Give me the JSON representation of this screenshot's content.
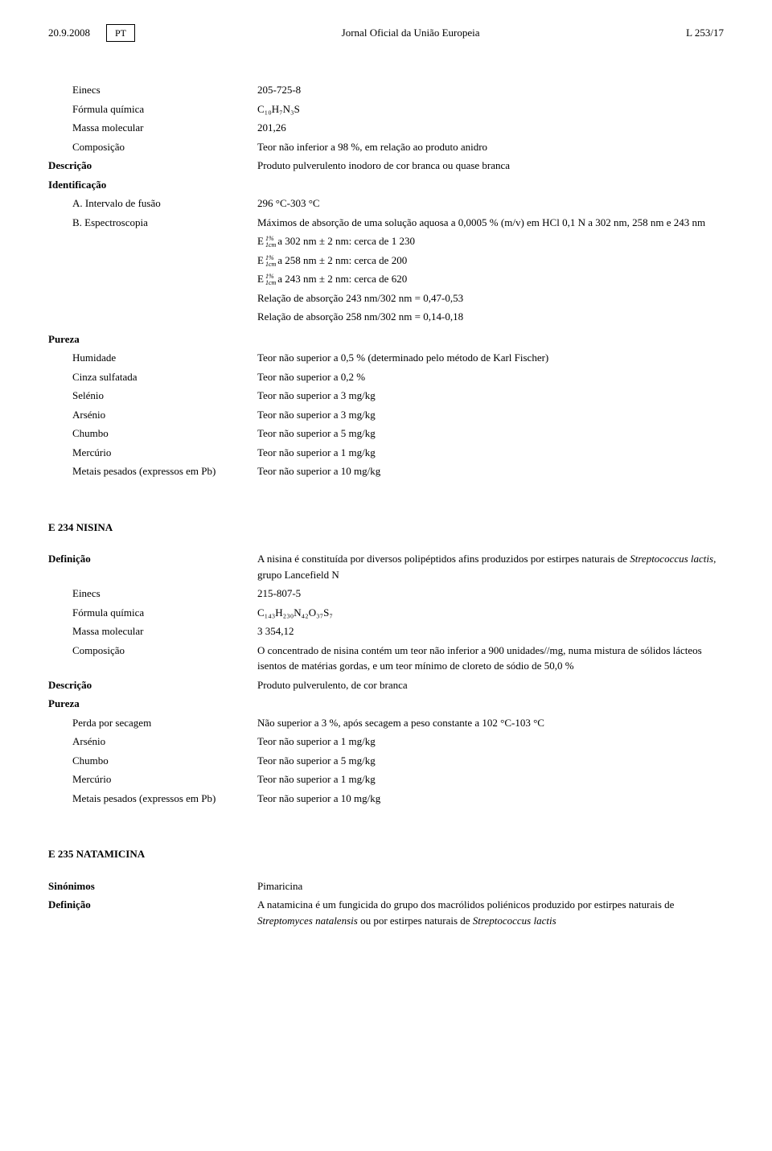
{
  "header": {
    "date": "20.9.2008",
    "lang": "PT",
    "journal": "Jornal Oficial da União Europeia",
    "page_ref": "L 253/17"
  },
  "section1": {
    "einecs_label": "Einecs",
    "einecs_value": "205-725-8",
    "formula_label": "Fórmula química",
    "formula_value": "C₁₀H₇N₃S",
    "massa_label": "Massa molecular",
    "massa_value": "201,26",
    "composicao_label": "Composição",
    "composicao_value": "Teor não inferior a 98 %, em relação ao produto anidro",
    "descricao_label": "Descrição",
    "descricao_value": "Produto pulverulento inodoro de cor branca ou quase branca",
    "identificacao_label": "Identificação",
    "intervalo_label": "A.  Intervalo de fusão",
    "intervalo_value": "296 °C-303 °C",
    "espectro_label": "B.  Espectroscopia",
    "espectro_line1": "Máximos de absorção de uma solução aquosa a 0,0005 % (m/v) em HCl 0,1 N a 302 nm, 258 nm e 243 nm",
    "espectro_e1": "a 302 nm ± 2 nm: cerca de 1 230",
    "espectro_e2": "a 258 nm ± 2 nm: cerca de 200",
    "espectro_e3": "a 243 nm ± 2 nm: cerca de 620",
    "espectro_rel1": "Relação de absorção 243 nm/302 nm = 0,47-0,53",
    "espectro_rel2": "Relação de absorção 258 nm/302 nm = 0,14-0,18",
    "pureza_label": "Pureza",
    "humidade_label": "Humidade",
    "humidade_value": "Teor não superior a 0,5 % (determinado pelo método de Karl Fischer)",
    "cinza_label": "Cinza sulfatada",
    "cinza_value": "Teor não superior a 0,2 %",
    "selenio_label": "Selénio",
    "selenio_value": "Teor não superior a 3 mg/kg",
    "arsenio_label": "Arsénio",
    "arsenio_value": "Teor não superior a 3 mg/kg",
    "chumbo_label": "Chumbo",
    "chumbo_value": "Teor não superior a 5 mg/kg",
    "mercurio_label": "Mercúrio",
    "mercurio_value": "Teor não superior a 1 mg/kg",
    "metais_label": "Metais pesados (expressos em Pb)",
    "metais_value": "Teor não superior a 10 mg/kg"
  },
  "section2": {
    "title": "E 234 NISINA",
    "definicao_label": "Definição",
    "definicao_value_pre": "A nisina é constituída por diversos polipéptidos afins produzidos por estirpes naturais de ",
    "definicao_value_it": "Streptococcus lactis",
    "definicao_value_post": ", grupo Lancefield N",
    "einecs_label": "Einecs",
    "einecs_value": "215-807-5",
    "formula_label": "Fórmula química",
    "formula_value": "C₁₄₃H₂₃₀N₄₂O₃₇S₇",
    "massa_label": "Massa molecular",
    "massa_value": "3 354,12",
    "composicao_label": "Composição",
    "composicao_value": "O concentrado de nisina contém um teor não inferior a 900 unidades//mg, numa mistura de sólidos lácteos isentos de matérias gordas, e um teor mínimo de cloreto de sódio de 50,0 %",
    "descricao_label": "Descrição",
    "descricao_value": "Produto pulverulento, de cor branca",
    "pureza_label": "Pureza",
    "perda_label": "Perda por secagem",
    "perda_value": "Não superior a 3 %, após secagem a peso constante a 102 °C-103 °C",
    "arsenio_label": "Arsénio",
    "arsenio_value": "Teor não superior a 1 mg/kg",
    "chumbo_label": "Chumbo",
    "chumbo_value": "Teor não superior a 5 mg/kg",
    "mercurio_label": "Mercúrio",
    "mercurio_value": "Teor não superior a 1 mg/kg",
    "metais_label": "Metais pesados (expressos em Pb)",
    "metais_value": "Teor não superior a 10 mg/kg"
  },
  "section3": {
    "title": "E 235 NATAMICINA",
    "sinonimos_label": "Sinónimos",
    "sinonimos_value": "Pimaricina",
    "definicao_label": "Definição",
    "definicao_pre": "A natamicina é um fungicida do grupo dos macrólidos poliénicos produzido por estirpes naturais de ",
    "definicao_it1": "Streptomyces natalensis",
    "definicao_mid": " ou por estirpes naturais de ",
    "definicao_it2": "Streptococcus lactis"
  }
}
